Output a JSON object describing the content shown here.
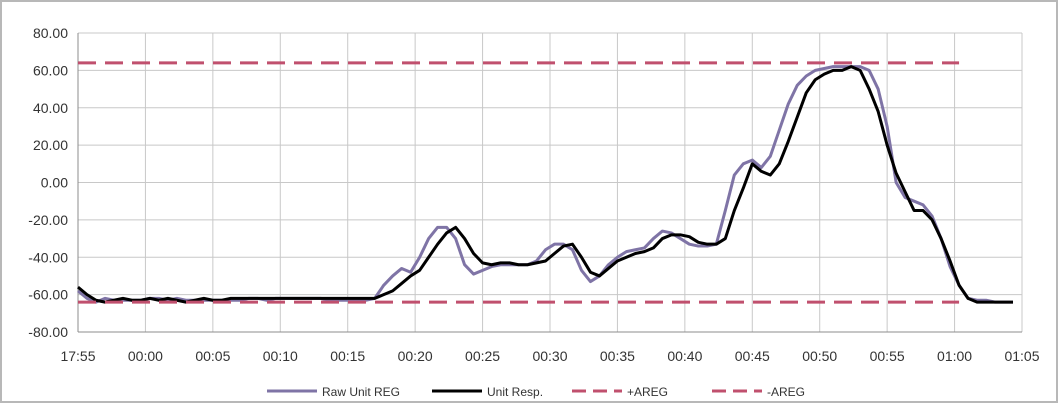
{
  "chart_data": {
    "type": "line",
    "title": "",
    "xlabel": "",
    "ylabel": "",
    "ylim": [
      -80,
      80
    ],
    "yticks": [
      "80.00",
      "60.00",
      "40.00",
      "20.00",
      "0.00",
      "-20.00",
      "-40.00",
      "-60.00",
      "-80.00"
    ],
    "xticks": [
      "17:55",
      "00:00",
      "00:05",
      "00:10",
      "00:15",
      "00:20",
      "00:25",
      "00:30",
      "00:35",
      "00:40",
      "00:45",
      "00:50",
      "00:55",
      "01:00",
      "01:05"
    ],
    "grid": true,
    "legend_position": "bottom",
    "series": [
      {
        "name": "Raw Unit REG",
        "color": "#7f74a6",
        "style": "solid",
        "points": [
          [
            0,
            -58
          ],
          [
            1,
            -62
          ],
          [
            2,
            -64
          ],
          [
            3,
            -62
          ],
          [
            4,
            -63
          ],
          [
            5,
            -63
          ],
          [
            6,
            -63
          ],
          [
            7,
            -63
          ],
          [
            8,
            -62
          ],
          [
            9,
            -62
          ],
          [
            10,
            -63
          ],
          [
            11,
            -62
          ],
          [
            12,
            -63
          ],
          [
            13,
            -63
          ],
          [
            14,
            -63
          ],
          [
            15,
            -63
          ],
          [
            16,
            -63
          ],
          [
            17,
            -63
          ],
          [
            18,
            -63
          ],
          [
            19,
            -62
          ],
          [
            20,
            -62
          ],
          [
            21,
            -63
          ],
          [
            22,
            -62
          ],
          [
            23,
            -62
          ],
          [
            24,
            -62
          ],
          [
            25,
            -62
          ],
          [
            26,
            -62
          ],
          [
            27,
            -62
          ],
          [
            28,
            -63
          ],
          [
            29,
            -63
          ],
          [
            30,
            -63
          ],
          [
            31,
            -63
          ],
          [
            32,
            -63
          ],
          [
            33,
            -62
          ],
          [
            34,
            -55
          ],
          [
            35,
            -50
          ],
          [
            36,
            -46
          ],
          [
            37,
            -48
          ],
          [
            38,
            -40
          ],
          [
            39,
            -30
          ],
          [
            40,
            -24
          ],
          [
            41,
            -24
          ],
          [
            42,
            -30
          ],
          [
            43,
            -44
          ],
          [
            44,
            -49
          ],
          [
            45,
            -47
          ],
          [
            46,
            -45
          ],
          [
            47,
            -44
          ],
          [
            48,
            -44
          ],
          [
            49,
            -44
          ],
          [
            50,
            -44
          ],
          [
            51,
            -42
          ],
          [
            52,
            -36
          ],
          [
            53,
            -33
          ],
          [
            54,
            -33
          ],
          [
            55,
            -36
          ],
          [
            56,
            -47
          ],
          [
            57,
            -53
          ],
          [
            58,
            -50
          ],
          [
            59,
            -44
          ],
          [
            60,
            -40
          ],
          [
            61,
            -37
          ],
          [
            62,
            -36
          ],
          [
            63,
            -35
          ],
          [
            64,
            -30
          ],
          [
            65,
            -26
          ],
          [
            66,
            -27
          ],
          [
            67,
            -30
          ],
          [
            68,
            -33
          ],
          [
            69,
            -34
          ],
          [
            70,
            -34
          ],
          [
            71,
            -33
          ],
          [
            72,
            -15
          ],
          [
            73,
            4
          ],
          [
            74,
            10
          ],
          [
            75,
            12
          ],
          [
            76,
            8
          ],
          [
            77,
            14
          ],
          [
            78,
            28
          ],
          [
            79,
            42
          ],
          [
            80,
            52
          ],
          [
            81,
            57
          ],
          [
            82,
            60
          ],
          [
            83,
            61
          ],
          [
            84,
            62
          ],
          [
            85,
            62
          ],
          [
            86,
            62
          ],
          [
            87,
            62
          ],
          [
            88,
            60
          ],
          [
            89,
            50
          ],
          [
            90,
            30
          ],
          [
            91,
            0
          ],
          [
            92,
            -8
          ],
          [
            93,
            -10
          ],
          [
            94,
            -12
          ],
          [
            95,
            -18
          ],
          [
            96,
            -30
          ],
          [
            97,
            -45
          ],
          [
            98,
            -55
          ],
          [
            99,
            -62
          ],
          [
            100,
            -63
          ],
          [
            101,
            -63
          ],
          [
            102,
            -64
          ],
          [
            103,
            -64
          ],
          [
            104,
            -64
          ]
        ]
      },
      {
        "name": "Unit Resp.",
        "color": "#000000",
        "style": "solid",
        "points": [
          [
            0,
            -56
          ],
          [
            1,
            -60
          ],
          [
            2,
            -63
          ],
          [
            3,
            -64
          ],
          [
            4,
            -63
          ],
          [
            5,
            -62
          ],
          [
            6,
            -63
          ],
          [
            7,
            -63
          ],
          [
            8,
            -62
          ],
          [
            9,
            -63
          ],
          [
            10,
            -62
          ],
          [
            11,
            -63
          ],
          [
            12,
            -64
          ],
          [
            13,
            -63
          ],
          [
            14,
            -62
          ],
          [
            15,
            -63
          ],
          [
            16,
            -63
          ],
          [
            17,
            -62
          ],
          [
            18,
            -62
          ],
          [
            19,
            -62
          ],
          [
            20,
            -62
          ],
          [
            21,
            -62
          ],
          [
            22,
            -62
          ],
          [
            23,
            -62
          ],
          [
            24,
            -62
          ],
          [
            25,
            -62
          ],
          [
            26,
            -62
          ],
          [
            27,
            -62
          ],
          [
            28,
            -62
          ],
          [
            29,
            -62
          ],
          [
            30,
            -62
          ],
          [
            31,
            -62
          ],
          [
            32,
            -62
          ],
          [
            33,
            -62
          ],
          [
            34,
            -60
          ],
          [
            35,
            -58
          ],
          [
            36,
            -54
          ],
          [
            37,
            -50
          ],
          [
            38,
            -47
          ],
          [
            39,
            -40
          ],
          [
            40,
            -33
          ],
          [
            41,
            -27
          ],
          [
            42,
            -24
          ],
          [
            43,
            -30
          ],
          [
            44,
            -38
          ],
          [
            45,
            -43
          ],
          [
            46,
            -44
          ],
          [
            47,
            -43
          ],
          [
            48,
            -43
          ],
          [
            49,
            -44
          ],
          [
            50,
            -44
          ],
          [
            51,
            -43
          ],
          [
            52,
            -42
          ],
          [
            53,
            -38
          ],
          [
            54,
            -34
          ],
          [
            55,
            -33
          ],
          [
            56,
            -40
          ],
          [
            57,
            -48
          ],
          [
            58,
            -50
          ],
          [
            59,
            -46
          ],
          [
            60,
            -42
          ],
          [
            61,
            -40
          ],
          [
            62,
            -38
          ],
          [
            63,
            -37
          ],
          [
            64,
            -35
          ],
          [
            65,
            -30
          ],
          [
            66,
            -28
          ],
          [
            67,
            -28
          ],
          [
            68,
            -29
          ],
          [
            69,
            -32
          ],
          [
            70,
            -33
          ],
          [
            71,
            -33
          ],
          [
            72,
            -30
          ],
          [
            73,
            -15
          ],
          [
            74,
            -3
          ],
          [
            75,
            10
          ],
          [
            76,
            6
          ],
          [
            77,
            4
          ],
          [
            78,
            10
          ],
          [
            79,
            22
          ],
          [
            80,
            35
          ],
          [
            81,
            48
          ],
          [
            82,
            55
          ],
          [
            83,
            58
          ],
          [
            84,
            60
          ],
          [
            85,
            60
          ],
          [
            86,
            62
          ],
          [
            87,
            60
          ],
          [
            88,
            50
          ],
          [
            89,
            38
          ],
          [
            90,
            20
          ],
          [
            91,
            5
          ],
          [
            92,
            -5
          ],
          [
            93,
            -15
          ],
          [
            94,
            -15
          ],
          [
            95,
            -20
          ],
          [
            96,
            -30
          ],
          [
            97,
            -42
          ],
          [
            98,
            -55
          ],
          [
            99,
            -62
          ],
          [
            100,
            -64
          ],
          [
            101,
            -64
          ],
          [
            102,
            -64
          ],
          [
            103,
            -64
          ],
          [
            104,
            -64
          ]
        ]
      },
      {
        "name": "+AREG",
        "color": "#c0506e",
        "style": "dashed",
        "points": [
          [
            0,
            64
          ],
          [
            98,
            64
          ]
        ]
      },
      {
        "name": "-AREG",
        "color": "#c0506e",
        "style": "dashed",
        "points": [
          [
            0,
            -64
          ],
          [
            98,
            -64
          ]
        ]
      }
    ]
  }
}
